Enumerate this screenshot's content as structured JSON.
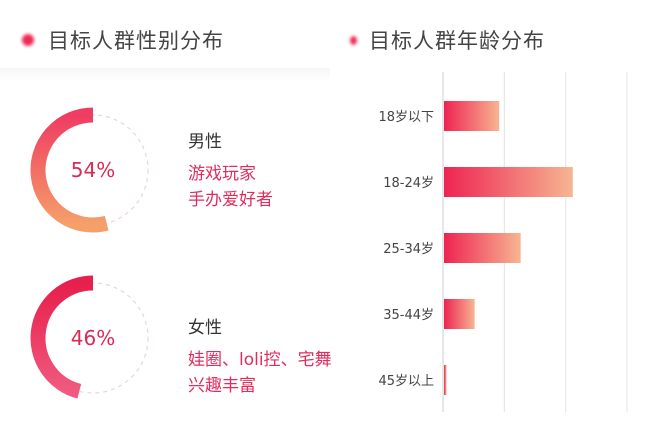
{
  "left_panel": {
    "title": "目标人群性别分布",
    "male": {
      "percent_label": "54%",
      "label": "男性",
      "desc_lines": [
        "游戏玩家",
        "手办爱好者"
      ]
    },
    "female": {
      "percent_label": "46%",
      "label": "女性",
      "desc_lines": [
        "娃圈、loli控、宅舞",
        "兴趣丰富"
      ]
    }
  },
  "right_panel": {
    "title": "目标人群年龄分布"
  },
  "colors": {
    "accent": "#ee2a55",
    "male_gradient": [
      "#ef3c62",
      "#f5a06a"
    ],
    "female_gradient": [
      "#e71f4c",
      "#f05a7e"
    ],
    "bar_gradient": [
      "#ee2452",
      "#f7b592"
    ]
  },
  "chart_data": [
    {
      "type": "pie",
      "subtype": "donut",
      "title": "目标人群性别分布",
      "slices": [
        {
          "label": "男性",
          "value": 54
        },
        {
          "label": "女性",
          "value": 46
        }
      ]
    },
    {
      "type": "bar",
      "orientation": "horizontal",
      "title": "目标人群年龄分布",
      "categories": [
        "18岁以下",
        "18-24岁",
        "25-34岁",
        "35-44岁",
        "45岁以上"
      ],
      "values": [
        9,
        21,
        12.5,
        5,
        0.4
      ],
      "xlim": [
        0,
        30
      ],
      "grid": true,
      "value_labels_shown": false
    }
  ]
}
